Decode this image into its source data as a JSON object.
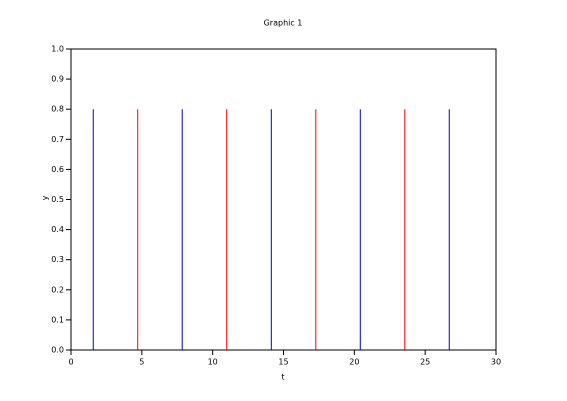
{
  "chart_data": {
    "type": "stem",
    "title": "Graphic 1",
    "x_label": "t",
    "y_label": "y",
    "series": [
      {
        "color": "#0000cc",
        "x": [
          1.57,
          7.85,
          14.14,
          20.42,
          26.7
        ],
        "values": [
          0.8,
          0.8,
          0.8,
          0.8,
          0.8
        ]
      },
      {
        "color": "#ff0000",
        "x": [
          4.71,
          10.99,
          17.28,
          23.56
        ],
        "values": [
          0.8,
          0.8,
          0.8,
          0.8
        ]
      }
    ],
    "xlim": [
      0,
      30
    ],
    "xticks": [
      0,
      5,
      10,
      15,
      20,
      25,
      30
    ],
    "ylim": [
      0,
      1
    ],
    "yticks": [
      {
        "value": 0,
        "label": "0.0"
      },
      0.1,
      0.2,
      0.3,
      0.4,
      0.5,
      0.6,
      0.7,
      0.8,
      0.9,
      {
        "value": 1,
        "label": "1.0"
      }
    ]
  }
}
